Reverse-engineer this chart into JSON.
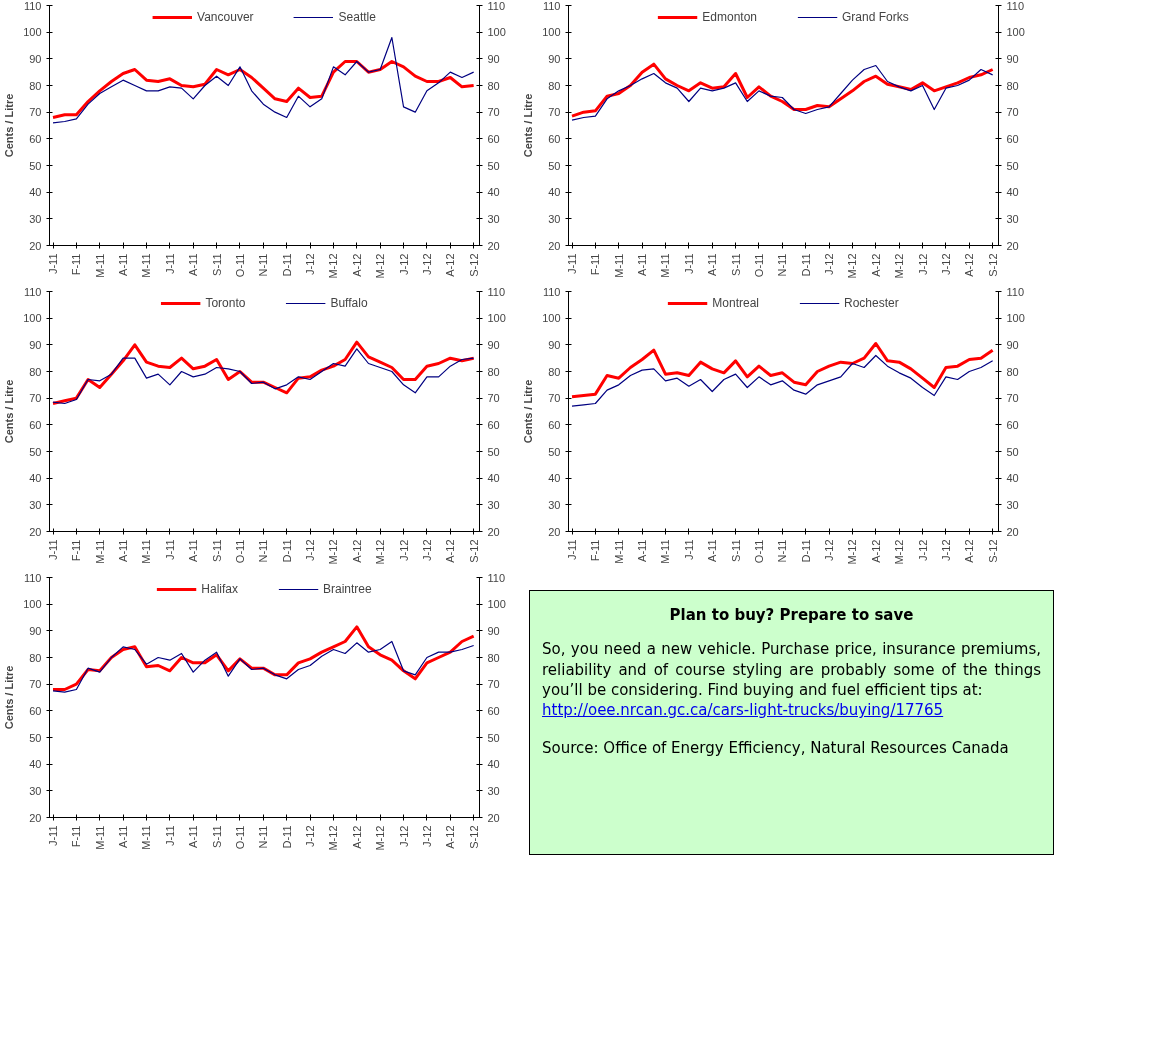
{
  "chart_data": [
    {
      "type": "line",
      "categories": [
        "J-11",
        null,
        "F-11",
        null,
        "M-11",
        null,
        "A-11",
        null,
        "M-11",
        null,
        "J-11",
        null,
        "A-11",
        null,
        "S-11",
        null,
        "O-11",
        null,
        "N-11",
        null,
        "D-11",
        null,
        "J-12",
        null,
        "M-12",
        null,
        "A-12",
        null,
        "M-12",
        null,
        "J-12",
        null,
        "J-12",
        null,
        "A-12",
        null,
        "S-12"
      ],
      "ylabel": "Cents / Litre",
      "ylim": [
        20,
        110
      ],
      "yticks": [
        20,
        30,
        40,
        50,
        60,
        70,
        80,
        90,
        100,
        110
      ],
      "y2lim": [
        20,
        110
      ],
      "y2ticks": [
        20,
        30,
        40,
        50,
        60,
        70,
        80,
        90,
        100,
        110
      ],
      "legend": "top",
      "series": [
        {
          "name": "Vancouver",
          "color": "#ff0000",
          "values": [
            68,
            69,
            69,
            74,
            78,
            81.5,
            84.5,
            86,
            82,
            81.5,
            82.5,
            80,
            79.5,
            80.5,
            86,
            84,
            86,
            83,
            79,
            75,
            74,
            79,
            75.5,
            76,
            85,
            89,
            89,
            85,
            86,
            89,
            87,
            83.5,
            81.5,
            81.5,
            83,
            79.5,
            80
          ]
        },
        {
          "name": "Seattle",
          "color": "#000080",
          "values": [
            66,
            66.5,
            67.5,
            73,
            77,
            79.5,
            82,
            80,
            78,
            78,
            79.5,
            79,
            75,
            80,
            83.5,
            80,
            87,
            78,
            73,
            70,
            68,
            76,
            72,
            75,
            87,
            84,
            89,
            85,
            86,
            98,
            72,
            70,
            78,
            81,
            85,
            83,
            85
          ]
        }
      ]
    },
    {
      "type": "line",
      "categories": [
        "J-11",
        null,
        "F-11",
        null,
        "M-11",
        null,
        "A-11",
        null,
        "M-11",
        null,
        "J-11",
        null,
        "A-11",
        null,
        "S-11",
        null,
        "O-11",
        null,
        "N-11",
        null,
        "D-11",
        null,
        "J-12",
        null,
        "M-12",
        null,
        "A-12",
        null,
        "M-12",
        null,
        "J-12",
        null,
        "J-12",
        null,
        "A-12",
        null,
        "S-12"
      ],
      "ylabel": "Cents / Litre",
      "ylim": [
        20,
        110
      ],
      "yticks": [
        20,
        30,
        40,
        50,
        60,
        70,
        80,
        90,
        100,
        110
      ],
      "y2lim": [
        20,
        110
      ],
      "y2ticks": [
        20,
        30,
        40,
        50,
        60,
        70,
        80,
        90,
        100,
        110
      ],
      "legend": "top",
      "series": [
        {
          "name": "Edmonton",
          "color": "#ff0000",
          "values": [
            68.5,
            70,
            70.5,
            76,
            77,
            80,
            85,
            88,
            82.5,
            80,
            78,
            81,
            79,
            79.5,
            84.5,
            75.5,
            79.5,
            76,
            74,
            71,
            71,
            72.5,
            72,
            75,
            78,
            81.5,
            83.5,
            80.5,
            79.5,
            78.5,
            81,
            78,
            79.5,
            81,
            83,
            84,
            86
          ]
        },
        {
          "name": "Grand Forks",
          "color": "#000080",
          "values": [
            67,
            68,
            68.5,
            75,
            78,
            80,
            82.5,
            84.5,
            81,
            79,
            74,
            79,
            78,
            79,
            81,
            74,
            78,
            76,
            75.5,
            71,
            69.5,
            71,
            72,
            77,
            82,
            86,
            87.5,
            81.5,
            79.5,
            78,
            80,
            71,
            79,
            80,
            82,
            86,
            84
          ]
        }
      ]
    },
    {
      "type": "line",
      "categories": [
        "J-11",
        null,
        "F-11",
        null,
        "M-11",
        null,
        "A-11",
        null,
        "M-11",
        null,
        "J-11",
        null,
        "A-11",
        null,
        "S-11",
        null,
        "O-11",
        null,
        "N-11",
        null,
        "D-11",
        null,
        "J-12",
        null,
        "M-12",
        null,
        "A-12",
        null,
        "M-12",
        null,
        "J-12",
        null,
        "J-12",
        null,
        "A-12",
        null,
        "S-12"
      ],
      "ylabel": "Cents / Litre",
      "ylim": [
        20,
        110
      ],
      "yticks": [
        20,
        30,
        40,
        50,
        60,
        70,
        80,
        90,
        100,
        110
      ],
      "y2lim": [
        20,
        110
      ],
      "y2ticks": [
        20,
        30,
        40,
        50,
        60,
        70,
        80,
        90,
        100,
        110
      ],
      "legend": "top",
      "series": [
        {
          "name": "Toronto",
          "color": "#ff0000",
          "values": [
            68,
            69,
            70,
            77,
            74,
            79,
            84,
            90,
            83.5,
            82,
            81.5,
            85,
            81,
            82,
            84.5,
            77,
            80,
            76,
            76,
            74,
            72,
            77.5,
            78,
            80.5,
            82,
            84.5,
            91,
            85.5,
            83.5,
            81.5,
            77,
            77,
            82,
            83,
            85,
            84,
            85
          ]
        },
        {
          "name": "Buffalo",
          "color": "#000080",
          "values": [
            68.5,
            68,
            69.5,
            77,
            76.5,
            79,
            85,
            85,
            77.5,
            79,
            75,
            80,
            78,
            79,
            81.5,
            81,
            80,
            75.5,
            76,
            73.5,
            75,
            78,
            77,
            80,
            83,
            82,
            88.5,
            83,
            81.5,
            80,
            75,
            72,
            78,
            78,
            82,
            84.5,
            85
          ]
        }
      ]
    },
    {
      "type": "line",
      "categories": [
        "J-11",
        null,
        "F-11",
        null,
        "M-11",
        null,
        "A-11",
        null,
        "M-11",
        null,
        "J-11",
        null,
        "A-11",
        null,
        "S-11",
        null,
        "O-11",
        null,
        "N-11",
        null,
        "D-11",
        null,
        "J-12",
        null,
        "M-12",
        null,
        "A-12",
        null,
        "M-12",
        null,
        "J-12",
        null,
        "J-12",
        null,
        "A-12",
        null,
        "S-12"
      ],
      "ylabel": "Cents / Litre",
      "ylim": [
        20,
        110
      ],
      "yticks": [
        20,
        30,
        40,
        50,
        60,
        70,
        80,
        90,
        100,
        110
      ],
      "y2lim": [
        20,
        110
      ],
      "y2ticks": [
        20,
        30,
        40,
        50,
        60,
        70,
        80,
        90,
        100,
        110
      ],
      "legend": "top",
      "series": [
        {
          "name": "Montreal",
          "color": "#ff0000",
          "values": [
            70.5,
            71,
            71.5,
            78.5,
            77.5,
            81.5,
            84.5,
            88,
            79,
            79.5,
            78.5,
            83.5,
            81,
            79.5,
            84,
            78,
            82,
            78.5,
            79.5,
            76,
            75,
            80,
            82,
            83.5,
            83,
            85,
            90.5,
            84,
            83.5,
            81,
            77.5,
            74,
            81.5,
            82,
            84.5,
            85,
            88
          ]
        },
        {
          "name": "Rochester",
          "color": "#000080",
          "values": [
            67,
            67.5,
            68,
            73,
            75,
            78.5,
            80.5,
            81,
            76.5,
            77.5,
            74.5,
            77,
            72.5,
            77,
            79,
            74,
            78,
            75,
            76.5,
            73,
            71.5,
            75,
            76.5,
            78,
            83,
            81.5,
            86,
            82,
            79.5,
            77.5,
            74,
            71,
            78,
            77,
            80,
            81.5,
            84
          ]
        }
      ]
    },
    {
      "type": "line",
      "categories": [
        "J-11",
        null,
        "F-11",
        null,
        "M-11",
        null,
        "A-11",
        null,
        "M-11",
        null,
        "J-11",
        null,
        "A-11",
        null,
        "S-11",
        null,
        "O-11",
        null,
        "N-11",
        null,
        "D-11",
        null,
        "J-12",
        null,
        "M-12",
        null,
        "A-12",
        null,
        "M-12",
        null,
        "J-12",
        null,
        "J-12",
        null,
        "A-12",
        null,
        "S-12"
      ],
      "ylabel": "Cents / Litre",
      "ylim": [
        20,
        110
      ],
      "yticks": [
        20,
        30,
        40,
        50,
        60,
        70,
        80,
        90,
        100,
        110
      ],
      "y2lim": [
        20,
        110
      ],
      "y2ticks": [
        20,
        30,
        40,
        50,
        60,
        70,
        80,
        90,
        100,
        110
      ],
      "legend": "top",
      "series": [
        {
          "name": "Halifax",
          "color": "#ff0000",
          "values": [
            68,
            68,
            70,
            75.5,
            75,
            80,
            83,
            84,
            76.5,
            77,
            75,
            80,
            78,
            78,
            81,
            75,
            79.5,
            76,
            76,
            73.5,
            73.5,
            78,
            79.5,
            82,
            84,
            86,
            91.5,
            84,
            81,
            79,
            75,
            72,
            78,
            80,
            82,
            86,
            88
          ]
        },
        {
          "name": "Braintree",
          "color": "#000080",
          "values": [
            67.5,
            67,
            68,
            76,
            74.5,
            80,
            84,
            83,
            77.5,
            80,
            79,
            81.5,
            74.5,
            79,
            82,
            73,
            79.5,
            75.5,
            76,
            73.5,
            72,
            75.5,
            77,
            80.5,
            83,
            81.5,
            85.5,
            82,
            83,
            86,
            75,
            73.5,
            80,
            82,
            82,
            83,
            84.5
          ]
        }
      ]
    },
    {
      "type": "other",
      "title": "Plan to buy? Prepare to save",
      "annotations": [
        "So, you need a new vehicle. Purchase price, insurance premiums, reliability and of course styling are probably some of the things you’ll be considering. Find buying and fuel efficient tips at:",
        "http://oee.nrcan.gc.ca/cars-light-trucks/buying/17765",
        "Source: Office of Energy Efficiency, Natural Resources Canada"
      ]
    }
  ]
}
